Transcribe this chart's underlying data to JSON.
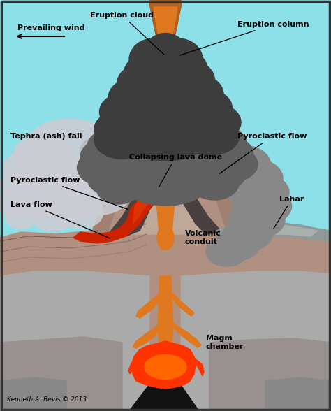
{
  "sky_color": "#8ee0e8",
  "ground_brown": "#b09080",
  "ground_mid": "#a08878",
  "ground_dark": "#907060",
  "subsurface_gray": "#aaaaaa",
  "subsurface_dark": "#999090",
  "bedrock_black": "#111111",
  "volcano_outer": "#a08070",
  "volcano_mid": "#b09080",
  "volcano_inner": "#c0a898",
  "pyro_dark": "#4a4040",
  "pyro_mid": "#606060",
  "cloud_darkest": "#2a2a2a",
  "cloud_dark": "#3d3d3d",
  "cloud_mid": "#606060",
  "cloud_light": "#888888",
  "ash_gray": "#b8b8c0",
  "ash_light": "#ccccd4",
  "lava_orange": "#e07820",
  "lava_red": "#cc2200",
  "lava_bright": "#ff3300",
  "lahar_gray": "#909898",
  "lahar_light": "#a8b0b0",
  "border_color": "#333333",
  "copyright": "Kenneth A. Bevis © 2013",
  "labels": {
    "prevailing_wind": "Prevailing wind",
    "eruption_cloud": "Eruption cloud",
    "eruption_column": "Eruption column",
    "tephra": "Tephra (ash) fall",
    "pyroclastic_flow_right": "Pyroclastic flow",
    "collapsing_lava_dome": "Collapsing lava dome",
    "pyroclastic_flow_left": "Pyroclastic flow",
    "lava_flow": "Lava flow",
    "lahar": "Lahar",
    "volcanic_conduit": "Volcanic\nconduit",
    "magma_chamber": "Magm\nchamber"
  },
  "figsize": [
    4.74,
    5.88
  ],
  "dpi": 100
}
